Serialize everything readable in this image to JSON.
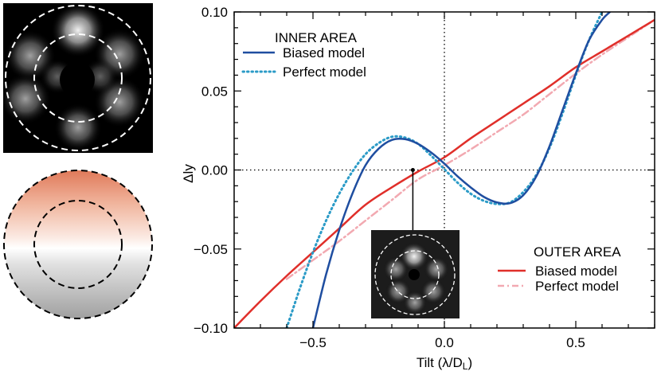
{
  "chart_data": {
    "type": "line",
    "xlabel": "Tilt (λ/D",
    "xlabel_sub": "L",
    "xlabel_close": ")",
    "ylabel": "Δly",
    "xlim": [
      -0.8,
      0.8
    ],
    "ylim": [
      -0.1,
      0.1
    ],
    "x_ticks": [
      -0.5,
      0.0,
      0.5
    ],
    "x_tick_labels": [
      "−0.5",
      "0.0",
      "0.5"
    ],
    "y_ticks": [
      -0.1,
      -0.05,
      0.0,
      0.05,
      0.1
    ],
    "y_tick_labels": [
      "−0.10",
      "−0.05",
      "0.00",
      "0.05",
      "0.10"
    ],
    "reference_lines": {
      "x": 0.0,
      "y": 0.0,
      "style": "dotted"
    },
    "legends": [
      {
        "title": "INNER AREA",
        "entries": [
          "Biased model",
          "Perfect model"
        ]
      },
      {
        "title": "OUTER AREA",
        "entries": [
          "Biased model",
          "Perfect model"
        ]
      }
    ],
    "series": [
      {
        "name": "Biased model",
        "group": "INNER AREA",
        "color": "#1f4ea0",
        "style": "solid",
        "x": [
          -0.5,
          -0.45,
          -0.4,
          -0.35,
          -0.3,
          -0.25,
          -0.2,
          -0.15,
          -0.1,
          -0.05,
          0.0,
          0.05,
          0.1,
          0.15,
          0.2,
          0.25,
          0.3,
          0.35,
          0.4,
          0.45,
          0.5,
          0.55,
          0.6,
          0.63
        ],
        "y": [
          -0.1,
          -0.066,
          -0.038,
          -0.015,
          0.003,
          0.0135,
          0.019,
          0.0195,
          0.0165,
          0.011,
          0.004,
          -0.004,
          -0.011,
          -0.017,
          -0.0205,
          -0.021,
          -0.016,
          -0.004,
          0.015,
          0.038,
          0.061,
          0.082,
          0.095,
          0.1
        ]
      },
      {
        "name": "Perfect model",
        "group": "INNER AREA",
        "color": "#2b9bc7",
        "style": "dotted",
        "x": [
          -0.6,
          -0.55,
          -0.5,
          -0.45,
          -0.4,
          -0.35,
          -0.3,
          -0.25,
          -0.2,
          -0.15,
          -0.1,
          -0.05,
          0.0,
          0.05,
          0.1,
          0.15,
          0.2,
          0.25,
          0.3,
          0.35,
          0.4,
          0.45,
          0.5,
          0.55,
          0.6
        ],
        "y": [
          -0.1,
          -0.075,
          -0.052,
          -0.032,
          -0.015,
          -0.001,
          0.01,
          0.017,
          0.021,
          0.0205,
          0.0165,
          0.009,
          0.0005,
          -0.008,
          -0.015,
          -0.0195,
          -0.0215,
          -0.0205,
          -0.014,
          -0.003,
          0.014,
          0.036,
          0.06,
          0.082,
          0.1
        ]
      },
      {
        "name": "Biased model",
        "group": "OUTER AREA",
        "color": "#e02f2a",
        "style": "solid",
        "x": [
          -0.8,
          -0.7,
          -0.6,
          -0.5,
          -0.4,
          -0.3,
          -0.2,
          -0.1,
          0.0,
          0.1,
          0.2,
          0.3,
          0.4,
          0.5,
          0.6,
          0.7,
          0.8
        ],
        "y": [
          -0.1,
          -0.083,
          -0.067,
          -0.052,
          -0.037,
          -0.022,
          -0.011,
          -0.001,
          0.008,
          0.02,
          0.031,
          0.042,
          0.053,
          0.065,
          0.075,
          0.085,
          0.095
        ]
      },
      {
        "name": "Perfect model",
        "group": "OUTER AREA",
        "color": "#f2a9b1",
        "style": "dashdot",
        "x": [
          -0.6,
          -0.5,
          -0.4,
          -0.3,
          -0.2,
          -0.1,
          0.0,
          0.1,
          0.2,
          0.3,
          0.4,
          0.5,
          0.6,
          0.7,
          0.8
        ],
        "y": [
          -0.069,
          -0.057,
          -0.045,
          -0.032,
          -0.019,
          -0.006,
          0.003,
          0.013,
          0.024,
          0.035,
          0.048,
          0.061,
          0.073,
          0.084,
          0.095
        ]
      }
    ],
    "inset_marker": {
      "x": -0.12,
      "y": 0.0
    }
  }
}
